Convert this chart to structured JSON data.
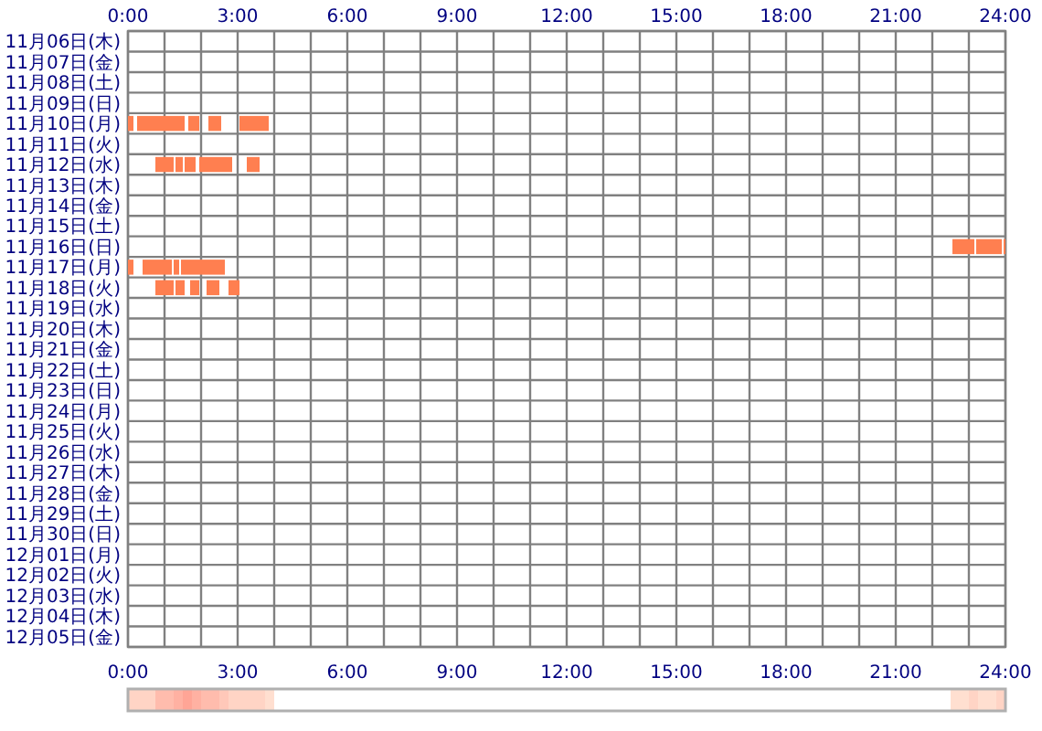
{
  "chart_data": {
    "type": "bar",
    "orientation": "horizontal",
    "categories": [
      "11月06日(木)",
      "11月07日(金)",
      "11月08日(土)",
      "11月09日(日)",
      "11月10日(月)",
      "11月11日(火)",
      "11月12日(水)",
      "11月13日(木)",
      "11月14日(金)",
      "11月15日(土)",
      "11月16日(日)",
      "11月17日(月)",
      "11月18日(火)",
      "11月19日(水)",
      "11月20日(木)",
      "11月21日(金)",
      "11月22日(土)",
      "11月23日(日)",
      "11月24日(月)",
      "11月25日(火)",
      "11月26日(水)",
      "11月27日(木)",
      "11月28日(金)",
      "11月29日(土)",
      "11月30日(日)",
      "12月01日(月)",
      "12月02日(火)",
      "12月03日(水)",
      "12月04日(木)",
      "12月05日(金)"
    ],
    "series": [
      {
        "color": "#ff7f50",
        "base": [
          null,
          null,
          null,
          null,
          0,
          null,
          0.75,
          null,
          null,
          null,
          22.55,
          0,
          0.75,
          null,
          null,
          null,
          null,
          null,
          null,
          null,
          null,
          null,
          null,
          null,
          null,
          null,
          null,
          null,
          null,
          null
        ],
        "values": [
          null,
          null,
          null,
          null,
          0.15,
          null,
          0.5,
          null,
          null,
          null,
          0.6,
          0.15,
          0.5,
          null,
          null,
          null,
          null,
          null,
          null,
          null,
          null,
          null,
          null,
          null,
          null,
          null,
          null,
          null,
          null,
          null
        ]
      },
      {
        "color": "#ff7f50",
        "base": [
          null,
          null,
          null,
          null,
          0.25,
          null,
          1.3,
          null,
          null,
          null,
          23.2,
          0.4,
          1.3,
          null,
          null,
          null,
          null,
          null,
          null,
          null,
          null,
          null,
          null,
          null,
          null,
          null,
          null,
          null,
          null,
          null
        ],
        "values": [
          null,
          null,
          null,
          null,
          1.3,
          null,
          0.2,
          null,
          null,
          null,
          0.7,
          0.8,
          0.25,
          null,
          null,
          null,
          null,
          null,
          null,
          null,
          null,
          null,
          null,
          null,
          null,
          null,
          null,
          null,
          null,
          null
        ]
      },
      {
        "color": "#ff7f50",
        "base": [
          null,
          null,
          null,
          null,
          1.65,
          null,
          1.55,
          null,
          null,
          null,
          23.95,
          1.25,
          1.7,
          null,
          null,
          null,
          null,
          null,
          null,
          null,
          null,
          null,
          null,
          null,
          null,
          null,
          null,
          null,
          null,
          null
        ],
        "values": [
          null,
          null,
          null,
          null,
          0.3,
          null,
          0.3,
          null,
          null,
          null,
          0.05,
          0.15,
          0.25,
          null,
          null,
          null,
          null,
          null,
          null,
          null,
          null,
          null,
          null,
          null,
          null,
          null,
          null,
          null,
          null,
          null
        ]
      },
      {
        "color": "#ff7f50",
        "base": [
          null,
          null,
          null,
          null,
          2.2,
          null,
          1.95,
          null,
          null,
          null,
          null,
          1.45,
          2.15,
          null,
          null,
          null,
          null,
          null,
          null,
          null,
          null,
          null,
          null,
          null,
          null,
          null,
          null,
          null,
          null,
          null
        ],
        "values": [
          null,
          null,
          null,
          null,
          0.35,
          null,
          0.9,
          null,
          null,
          null,
          null,
          1.2,
          0.35,
          null,
          null,
          null,
          null,
          null,
          null,
          null,
          null,
          null,
          null,
          null,
          null,
          null,
          null,
          null,
          null,
          null
        ]
      },
      {
        "color": "#ff7f50",
        "base": [
          null,
          null,
          null,
          null,
          3.05,
          null,
          3.25,
          null,
          null,
          null,
          null,
          null,
          2.75,
          null,
          null,
          null,
          null,
          null,
          null,
          null,
          null,
          null,
          null,
          null,
          null,
          null,
          null,
          null,
          null,
          null
        ],
        "values": [
          null,
          null,
          null,
          null,
          0.8,
          null,
          0.35,
          null,
          null,
          null,
          null,
          null,
          0.3,
          null,
          null,
          null,
          null,
          null,
          null,
          null,
          null,
          null,
          null,
          null,
          null,
          null,
          null,
          null,
          null,
          null
        ]
      }
    ],
    "xlim": [
      0,
      24
    ],
    "xticks": [
      {
        "value": 0,
        "label": "0:00"
      },
      {
        "value": 3,
        "label": "3:00"
      },
      {
        "value": 6,
        "label": "6:00"
      },
      {
        "value": 9,
        "label": "9:00"
      },
      {
        "value": 12,
        "label": "12:00"
      },
      {
        "value": 15,
        "label": "15:00"
      },
      {
        "value": 18,
        "label": "18:00"
      },
      {
        "value": 21,
        "label": "21:00"
      },
      {
        "value": 24,
        "label": "24:00"
      }
    ],
    "x2lim": [
      0,
      24
    ],
    "x2ticks": [
      {
        "value": 0,
        "label": "0:00"
      },
      {
        "value": 3,
        "label": "3:00"
      },
      {
        "value": 6,
        "label": "6:00"
      },
      {
        "value": 9,
        "label": "9:00"
      },
      {
        "value": 12,
        "label": "12:00"
      },
      {
        "value": 15,
        "label": "15:00"
      },
      {
        "value": 18,
        "label": "18:00"
      },
      {
        "value": 21,
        "label": "21:00"
      },
      {
        "value": 24,
        "label": "24:00"
      }
    ],
    "grid": true
  }
}
